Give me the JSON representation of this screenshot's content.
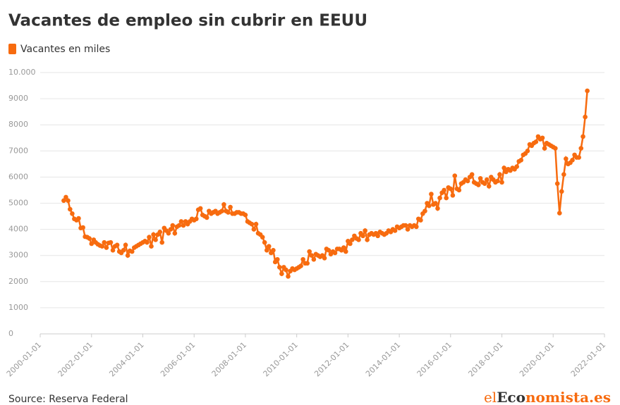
{
  "chart_data": {
    "type": "line",
    "title": "Vacantes de empleo sin cubrir en EEUU",
    "source": "Source: Reserva Federal",
    "logo": [
      "el",
      "Eco",
      "nomista.es"
    ],
    "xlim": [
      "2000-01-01",
      "2022-01-01"
    ],
    "xticks": [
      "2000-01-01",
      "2002-01-01",
      "2004-01-01",
      "2006-01-01",
      "2008-01-01",
      "2010-01-01",
      "2012-01-01",
      "2014-01-01",
      "2016-01-01",
      "2018-01-01",
      "2020-01-01",
      "2022-01-01"
    ],
    "ylim": [
      0,
      10000
    ],
    "yticks": [
      0,
      1000,
      2000,
      3000,
      4000,
      5000,
      6000,
      7000,
      8000,
      9000,
      {
        "value": 10000,
        "label": "10.000"
      }
    ],
    "grid": true,
    "legend": "top-left",
    "x": [
      "2000-12-01",
      "2001-01-01",
      "2001-02-01",
      "2001-03-01",
      "2001-04-01",
      "2001-05-01",
      "2001-06-01",
      "2001-07-01",
      "2001-08-01",
      "2001-09-01",
      "2001-10-01",
      "2001-11-01",
      "2001-12-01",
      "2002-01-01",
      "2002-02-01",
      "2002-03-01",
      "2002-04-01",
      "2002-05-01",
      "2002-06-01",
      "2002-07-01",
      "2002-08-01",
      "2002-09-01",
      "2002-10-01",
      "2002-11-01",
      "2002-12-01",
      "2003-01-01",
      "2003-02-01",
      "2003-03-01",
      "2003-04-01",
      "2003-05-01",
      "2003-06-01",
      "2003-07-01",
      "2003-08-01",
      "2003-09-01",
      "2003-10-01",
      "2003-11-01",
      "2003-12-01",
      "2004-01-01",
      "2004-02-01",
      "2004-03-01",
      "2004-04-01",
      "2004-05-01",
      "2004-06-01",
      "2004-07-01",
      "2004-08-01",
      "2004-09-01",
      "2004-10-01",
      "2004-11-01",
      "2004-12-01",
      "2005-01-01",
      "2005-02-01",
      "2005-03-01",
      "2005-04-01",
      "2005-05-01",
      "2005-06-01",
      "2005-07-01",
      "2005-08-01",
      "2005-09-01",
      "2005-10-01",
      "2005-11-01",
      "2005-12-01",
      "2006-01-01",
      "2006-02-01",
      "2006-03-01",
      "2006-04-01",
      "2006-05-01",
      "2006-06-01",
      "2006-07-01",
      "2006-08-01",
      "2006-09-01",
      "2006-10-01",
      "2006-11-01",
      "2006-12-01",
      "2007-01-01",
      "2007-02-01",
      "2007-03-01",
      "2007-04-01",
      "2007-05-01",
      "2007-06-01",
      "2007-07-01",
      "2007-08-01",
      "2007-09-01",
      "2007-10-01",
      "2007-11-01",
      "2007-12-01",
      "2008-01-01",
      "2008-02-01",
      "2008-03-01",
      "2008-04-01",
      "2008-05-01",
      "2008-06-01",
      "2008-07-01",
      "2008-08-01",
      "2008-09-01",
      "2008-10-01",
      "2008-11-01",
      "2008-12-01",
      "2009-01-01",
      "2009-02-01",
      "2009-03-01",
      "2009-04-01",
      "2009-05-01",
      "2009-06-01",
      "2009-07-01",
      "2009-08-01",
      "2009-09-01",
      "2009-10-01",
      "2009-11-01",
      "2009-12-01",
      "2010-01-01",
      "2010-02-01",
      "2010-03-01",
      "2010-04-01",
      "2010-05-01",
      "2010-06-01",
      "2010-07-01",
      "2010-08-01",
      "2010-09-01",
      "2010-10-01",
      "2010-11-01",
      "2010-12-01",
      "2011-01-01",
      "2011-02-01",
      "2011-03-01",
      "2011-04-01",
      "2011-05-01",
      "2011-06-01",
      "2011-07-01",
      "2011-08-01",
      "2011-09-01",
      "2011-10-01",
      "2011-11-01",
      "2011-12-01",
      "2012-01-01",
      "2012-02-01",
      "2012-03-01",
      "2012-04-01",
      "2012-05-01",
      "2012-06-01",
      "2012-07-01",
      "2012-08-01",
      "2012-09-01",
      "2012-10-01",
      "2012-11-01",
      "2012-12-01",
      "2013-01-01",
      "2013-02-01",
      "2013-03-01",
      "2013-04-01",
      "2013-05-01",
      "2013-06-01",
      "2013-07-01",
      "2013-08-01",
      "2013-09-01",
      "2013-10-01",
      "2013-11-01",
      "2013-12-01",
      "2014-01-01",
      "2014-02-01",
      "2014-03-01",
      "2014-04-01",
      "2014-05-01",
      "2014-06-01",
      "2014-07-01",
      "2014-08-01",
      "2014-09-01",
      "2014-10-01",
      "2014-11-01",
      "2014-12-01",
      "2015-01-01",
      "2015-02-01",
      "2015-03-01",
      "2015-04-01",
      "2015-05-01",
      "2015-06-01",
      "2015-07-01",
      "2015-08-01",
      "2015-09-01",
      "2015-10-01",
      "2015-11-01",
      "2015-12-01",
      "2016-01-01",
      "2016-02-01",
      "2016-03-01",
      "2016-04-01",
      "2016-05-01",
      "2016-06-01",
      "2016-07-01",
      "2016-08-01",
      "2016-09-01",
      "2016-10-01",
      "2016-11-01",
      "2016-12-01",
      "2017-01-01",
      "2017-02-01",
      "2017-03-01",
      "2017-04-01",
      "2017-05-01",
      "2017-06-01",
      "2017-07-01",
      "2017-08-01",
      "2017-09-01",
      "2017-10-01",
      "2017-11-01",
      "2017-12-01",
      "2018-01-01",
      "2018-02-01",
      "2018-03-01",
      "2018-04-01",
      "2018-05-01",
      "2018-06-01",
      "2018-07-01",
      "2018-08-01",
      "2018-09-01",
      "2018-10-01",
      "2018-11-01",
      "2018-12-01",
      "2019-01-01",
      "2019-02-01",
      "2019-03-01",
      "2019-04-01",
      "2019-05-01",
      "2019-06-01",
      "2019-07-01",
      "2019-08-01",
      "2019-09-01",
      "2019-10-01",
      "2019-11-01",
      "2019-12-01",
      "2020-01-01",
      "2020-02-01",
      "2020-03-01",
      "2020-04-01",
      "2020-05-01",
      "2020-06-01",
      "2020-07-01",
      "2020-08-01",
      "2020-09-01",
      "2020-10-01",
      "2020-11-01",
      "2020-12-01",
      "2021-01-01",
      "2021-02-01",
      "2021-03-01",
      "2021-04-01",
      "2021-05-01"
    ],
    "series": [
      {
        "name": "Vacantes en miles",
        "color": "#f76b0f",
        "values": [
          5100,
          5230,
          5100,
          4770,
          4600,
          4400,
          4350,
          4420,
          4050,
          4070,
          3720,
          3700,
          3650,
          3450,
          3600,
          3500,
          3430,
          3380,
          3350,
          3500,
          3300,
          3480,
          3500,
          3200,
          3350,
          3400,
          3150,
          3100,
          3200,
          3400,
          3000,
          3180,
          3150,
          3300,
          3350,
          3400,
          3450,
          3500,
          3550,
          3500,
          3700,
          3350,
          3800,
          3600,
          3800,
          3900,
          3500,
          4050,
          3950,
          3850,
          4000,
          4150,
          3850,
          4100,
          4150,
          4300,
          4150,
          4300,
          4200,
          4300,
          4400,
          4350,
          4400,
          4750,
          4800,
          4550,
          4500,
          4450,
          4700,
          4600,
          4650,
          4700,
          4600,
          4650,
          4700,
          4950,
          4700,
          4650,
          4850,
          4600,
          4600,
          4650,
          4650,
          4600,
          4600,
          4550,
          4300,
          4250,
          4200,
          4000,
          4200,
          3850,
          3800,
          3700,
          3500,
          3200,
          3350,
          3100,
          3200,
          2750,
          2850,
          2550,
          2300,
          2550,
          2450,
          2200,
          2400,
          2500,
          2450,
          2500,
          2550,
          2600,
          2850,
          2700,
          2700,
          3150,
          3000,
          2850,
          3050,
          3000,
          2950,
          3000,
          2900,
          3250,
          3200,
          3050,
          3150,
          3100,
          3250,
          3250,
          3200,
          3300,
          3150,
          3550,
          3450,
          3600,
          3750,
          3650,
          3600,
          3850,
          3750,
          3950,
          3600,
          3800,
          3850,
          3800,
          3850,
          3750,
          3900,
          3850,
          3800,
          3850,
          3950,
          3900,
          4000,
          3950,
          4100,
          4050,
          4100,
          4150,
          4150,
          4000,
          4150,
          4100,
          4150,
          4100,
          4400,
          4350,
          4600,
          4700,
          5000,
          4900,
          5350,
          4950,
          5000,
          4800,
          5200,
          5400,
          5500,
          5200,
          5600,
          5550,
          5300,
          6050,
          5550,
          5500,
          5750,
          5800,
          5900,
          5850,
          6000,
          6100,
          5800,
          5750,
          5700,
          5950,
          5800,
          5750,
          5900,
          5650,
          6000,
          5900,
          5800,
          5850,
          6100,
          5800,
          6350,
          6200,
          6300,
          6250,
          6350,
          6300,
          6400,
          6600,
          6650,
          6850,
          6900,
          7000,
          7250,
          7200,
          7300,
          7350,
          7550,
          7450,
          7500,
          7100,
          7300,
          7250,
          7200,
          7150,
          7100,
          5750,
          4620,
          5450,
          6100,
          6700,
          6500,
          6550,
          6650,
          6850,
          6750,
          6750,
          7100,
          7550,
          8300,
          9300
        ]
      }
    ]
  }
}
